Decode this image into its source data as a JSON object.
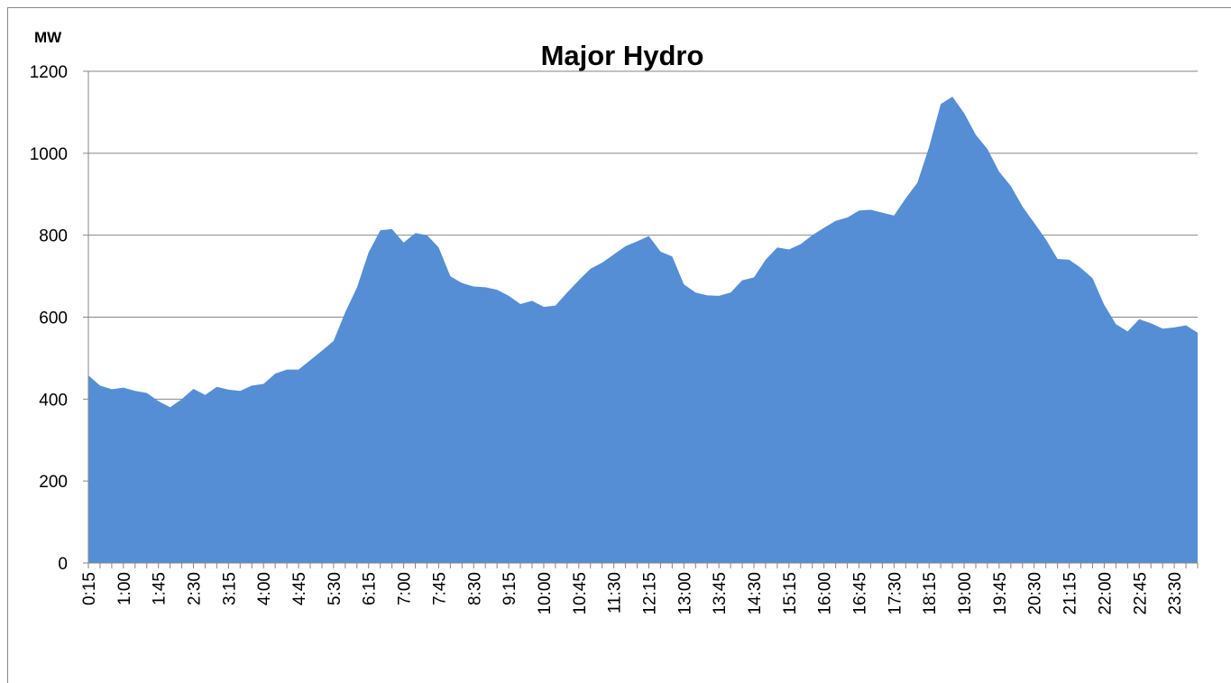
{
  "chart_data": {
    "type": "area",
    "title": "Major Hydro",
    "y_label": "MW",
    "categories": [
      "0:15",
      null,
      null,
      "1:00",
      null,
      null,
      "1:45",
      null,
      null,
      "2:30",
      null,
      null,
      "3:15",
      null,
      null,
      "4:00",
      null,
      null,
      "4:45",
      null,
      null,
      "5:30",
      null,
      null,
      "6:15",
      null,
      null,
      "7:00",
      null,
      null,
      "7:45",
      null,
      null,
      "8:30",
      null,
      null,
      "9:15",
      null,
      null,
      "10:00",
      null,
      null,
      "10:45",
      null,
      null,
      "11:30",
      null,
      null,
      "12:15",
      null,
      null,
      "13:00",
      null,
      null,
      "13:45",
      null,
      null,
      "14:30",
      null,
      null,
      "15:15",
      null,
      null,
      "16:00",
      null,
      null,
      "16:45",
      null,
      null,
      "17:30",
      null,
      null,
      "18:15",
      null,
      null,
      "19:00",
      null,
      null,
      "19:45",
      null,
      null,
      "20:30",
      null,
      null,
      "21:15",
      null,
      null,
      "22:00",
      null,
      null,
      "22:45",
      null,
      null,
      "23:30",
      null,
      null
    ],
    "values": [
      458,
      433,
      424,
      428,
      420,
      415,
      395,
      380,
      400,
      425,
      410,
      430,
      423,
      420,
      433,
      437,
      462,
      472,
      472,
      495,
      518,
      542,
      612,
      672,
      758,
      812,
      815,
      782,
      805,
      800,
      770,
      700,
      683,
      675,
      673,
      667,
      652,
      632,
      640,
      625,
      628,
      660,
      690,
      718,
      733,
      753,
      773,
      785,
      798,
      760,
      748,
      680,
      660,
      653,
      652,
      660,
      690,
      697,
      740,
      770,
      765,
      778,
      800,
      818,
      835,
      843,
      860,
      862,
      855,
      848,
      890,
      928,
      1015,
      1120,
      1138,
      1098,
      1045,
      1010,
      955,
      920,
      870,
      830,
      790,
      742,
      740,
      720,
      695,
      630,
      583,
      565,
      595,
      585,
      572,
      575,
      580,
      562
    ],
    "color": "#558ed5",
    "ylim": [
      0,
      1200
    ],
    "yticks": [
      0,
      200,
      400,
      600,
      800,
      1000,
      1200
    ],
    "grid": true
  }
}
